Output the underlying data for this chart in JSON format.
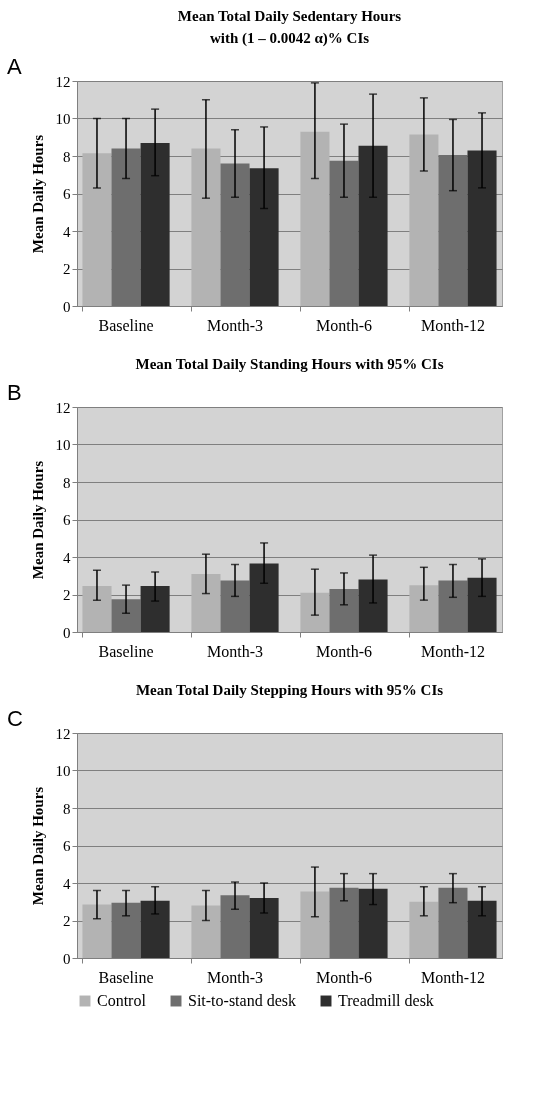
{
  "chart_data": [
    {
      "type": "bar",
      "title": "Mean Total Daily Sedentary Hours\nwith (1 – 0.0042 α)% CIs",
      "ylabel": "Mean Daily Hours",
      "annotations": [
        "A"
      ],
      "categories": [
        "Baseline",
        "Month-3",
        "Month-6",
        "Month-12"
      ],
      "ylim": [
        0,
        12
      ],
      "yticks": [
        0,
        2,
        4,
        6,
        8,
        10,
        12
      ],
      "grid": "y",
      "legend": false,
      "series": [
        {
          "color": "#b3b3b3",
          "values": [
            8.15,
            8.4,
            9.3,
            9.15
          ],
          "errors": [
            [
              6.3,
              10.0
            ],
            [
              5.75,
              11.0
            ],
            [
              6.8,
              11.9
            ],
            [
              7.2,
              11.1
            ]
          ]
        },
        {
          "color": "#6e6e6e",
          "values": [
            8.4,
            7.6,
            7.75,
            8.05
          ],
          "errors": [
            [
              6.8,
              10.0
            ],
            [
              5.8,
              9.4
            ],
            [
              5.8,
              9.7
            ],
            [
              6.15,
              9.95
            ]
          ]
        },
        {
          "color": "#2e2e2e",
          "values": [
            8.7,
            7.35,
            8.55,
            8.3
          ],
          "errors": [
            [
              6.95,
              10.5
            ],
            [
              5.2,
              9.55
            ],
            [
              5.8,
              11.3
            ],
            [
              6.3,
              10.3
            ]
          ]
        }
      ]
    },
    {
      "type": "bar",
      "title": "Mean Total Daily Standing Hours with 95% CIs",
      "ylabel": "Mean Daily Hours",
      "annotations": [
        "B"
      ],
      "categories": [
        "Baseline",
        "Month-3",
        "Month-6",
        "Month-12"
      ],
      "ylim": [
        0,
        12
      ],
      "yticks": [
        0,
        2,
        4,
        6,
        8,
        10,
        12
      ],
      "grid": "y",
      "legend": false,
      "series": [
        {
          "color": "#b3b3b3",
          "values": [
            2.45,
            3.1,
            2.1,
            2.5
          ],
          "errors": [
            [
              1.7,
              3.3
            ],
            [
              2.05,
              4.15
            ],
            [
              0.9,
              3.35
            ],
            [
              1.7,
              3.45
            ]
          ]
        },
        {
          "color": "#6e6e6e",
          "values": [
            1.75,
            2.75,
            2.3,
            2.75
          ],
          "errors": [
            [
              1.0,
              2.5
            ],
            [
              1.9,
              3.6
            ],
            [
              1.45,
              3.15
            ],
            [
              1.85,
              3.6
            ]
          ]
        },
        {
          "color": "#2e2e2e",
          "values": [
            2.45,
            3.65,
            2.8,
            2.9
          ],
          "errors": [
            [
              1.65,
              3.2
            ],
            [
              2.6,
              4.75
            ],
            [
              1.55,
              4.1
            ],
            [
              1.9,
              3.9
            ]
          ]
        }
      ]
    },
    {
      "type": "bar",
      "title": "Mean Total Daily Stepping Hours with 95% CIs",
      "ylabel": "Mean Daily Hours",
      "annotations": [
        "C"
      ],
      "categories": [
        "Baseline",
        "Month-3",
        "Month-6",
        "Month-12"
      ],
      "ylim": [
        0,
        12
      ],
      "yticks": [
        0,
        2,
        4,
        6,
        8,
        10,
        12
      ],
      "grid": "y",
      "legend": "bottom",
      "series": [
        {
          "name": "Control",
          "color": "#b3b3b3",
          "values": [
            2.85,
            2.8,
            3.55,
            3.0
          ],
          "errors": [
            [
              2.1,
              3.6
            ],
            [
              2.0,
              3.6
            ],
            [
              2.2,
              4.85
            ],
            [
              2.25,
              3.8
            ]
          ]
        },
        {
          "name": "Sit-to-stand desk",
          "color": "#6e6e6e",
          "values": [
            2.95,
            3.35,
            3.75,
            3.75
          ],
          "errors": [
            [
              2.25,
              3.6
            ],
            [
              2.6,
              4.05
            ],
            [
              3.05,
              4.5
            ],
            [
              2.95,
              4.5
            ]
          ]
        },
        {
          "name": "Treadmill desk",
          "color": "#2e2e2e",
          "values": [
            3.05,
            3.2,
            3.7,
            3.05
          ],
          "errors": [
            [
              2.35,
              3.8
            ],
            [
              2.4,
              4.0
            ],
            [
              2.85,
              4.5
            ],
            [
              2.25,
              3.8
            ]
          ]
        }
      ]
    }
  ]
}
